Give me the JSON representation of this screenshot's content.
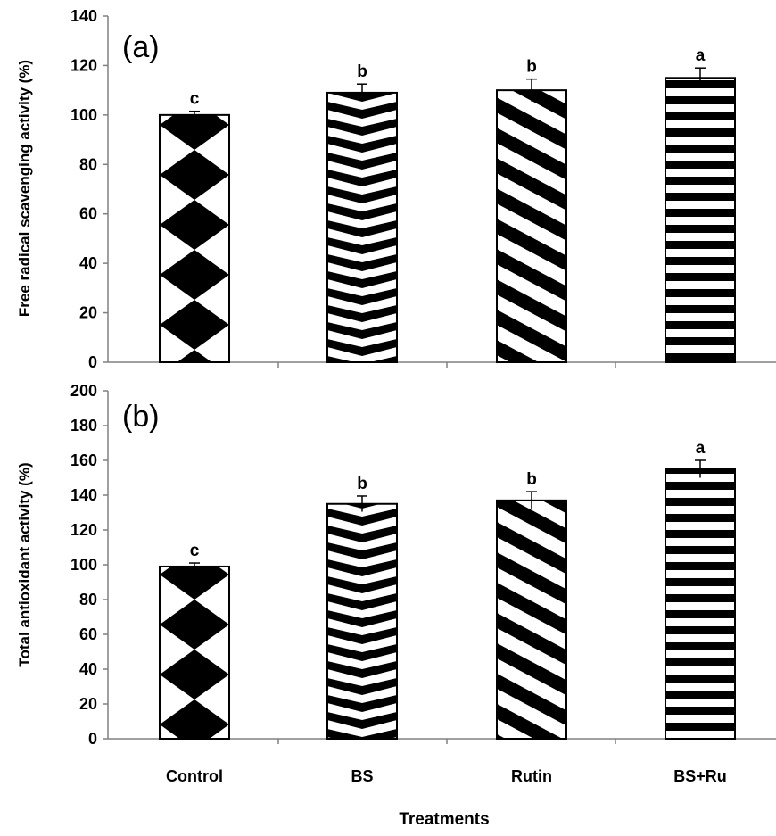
{
  "chart_data": [
    {
      "type": "bar",
      "panel_label": "(a)",
      "ylabel": "Free radical scavenging activity (%)",
      "categories": [
        "Control",
        "BS",
        "Rutin",
        "BS+Ru"
      ],
      "values": [
        100,
        109,
        110,
        115
      ],
      "errors": [
        1.5,
        3.5,
        4.5,
        4
      ],
      "significance": [
        "c",
        "b",
        "b",
        "a"
      ],
      "patterns": [
        "diamond",
        "chevron",
        "diagonal",
        "horizontal"
      ],
      "ylim": [
        0,
        140
      ],
      "yticks": [
        0,
        20,
        40,
        60,
        80,
        100,
        120,
        140
      ]
    },
    {
      "type": "bar",
      "panel_label": "(b)",
      "ylabel": "Total antioxidant activity (%)",
      "categories": [
        "Control",
        "BS",
        "Rutin",
        "BS+Ru"
      ],
      "values": [
        99,
        135,
        137,
        155
      ],
      "errors": [
        2,
        4.5,
        5,
        5
      ],
      "significance": [
        "c",
        "b",
        "b",
        "a"
      ],
      "patterns": [
        "diamond",
        "chevron",
        "diagonal",
        "horizontal"
      ],
      "ylim": [
        0,
        200
      ],
      "yticks": [
        0,
        20,
        40,
        60,
        80,
        100,
        120,
        140,
        160,
        180,
        200
      ]
    }
  ],
  "xlabel": "Treatments",
  "colors": {
    "bar_fill": "#000000",
    "bar_background": "#ffffff",
    "axis": "#808080"
  }
}
